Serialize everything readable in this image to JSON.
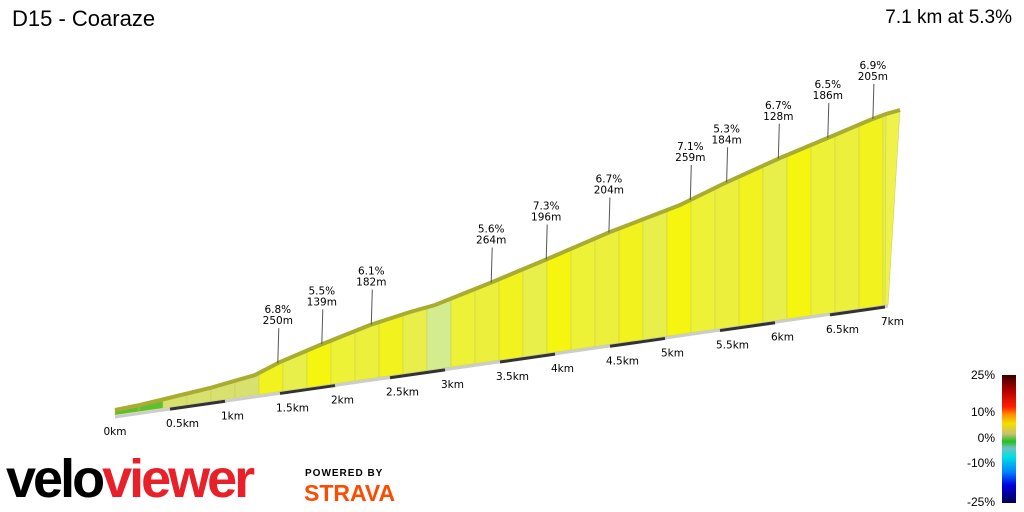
{
  "header": {
    "title": "D15 - Coaraze",
    "summary": "7.1 km at 5.3%"
  },
  "chart_data": {
    "type": "area",
    "title": "D15 - Coaraze",
    "total_distance_km": 7.1,
    "average_gradient_pct": 5.3,
    "x_ticks": [
      "0km",
      "0.5km",
      "1km",
      "1.5km",
      "2km",
      "2.5km",
      "3km",
      "3.5km",
      "4km",
      "4.5km",
      "5km",
      "5.5km",
      "6km",
      "6.5km",
      "7km"
    ],
    "segments": [
      {
        "km": 1.48,
        "gradient": "6.8%",
        "length": "250m"
      },
      {
        "km": 1.88,
        "gradient": "5.5%",
        "length": "139m"
      },
      {
        "km": 2.33,
        "gradient": "6.1%",
        "length": "182m"
      },
      {
        "km": 3.42,
        "gradient": "5.6%",
        "length": "264m"
      },
      {
        "km": 3.92,
        "gradient": "7.3%",
        "length": "196m"
      },
      {
        "km": 4.49,
        "gradient": "6.7%",
        "length": "204m"
      },
      {
        "km": 5.23,
        "gradient": "7.1%",
        "length": "259m"
      },
      {
        "km": 5.56,
        "gradient": "5.3%",
        "length": "184m"
      },
      {
        "km": 6.03,
        "gradient": "6.7%",
        "length": "128m"
      },
      {
        "km": 6.48,
        "gradient": "6.5%",
        "length": "186m"
      },
      {
        "km": 6.89,
        "gradient": "6.9%",
        "length": "205m"
      }
    ],
    "legend": {
      "labels": [
        "25%",
        "10%",
        "0%",
        "-10%",
        "-25%"
      ],
      "placement": "bottom-right"
    }
  },
  "branding": {
    "logo_text_a": "velo",
    "logo_text_b": "viewer",
    "powered_by": "POWERED BY",
    "strava": "STRAVA"
  }
}
